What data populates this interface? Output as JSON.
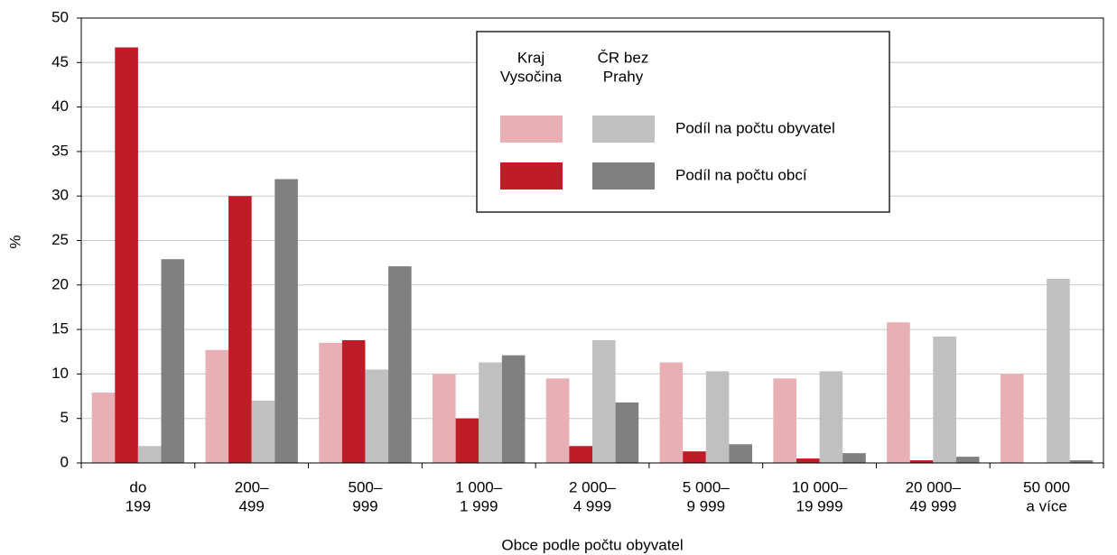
{
  "chart_data": {
    "type": "bar",
    "categories": [
      [
        "do",
        "199"
      ],
      [
        "200–",
        "499"
      ],
      [
        "500–",
        "999"
      ],
      [
        "1 000–",
        "1 999"
      ],
      [
        "2 000–",
        "4 999"
      ],
      [
        "5 000–",
        "9 999"
      ],
      [
        "10 000–",
        "19 999"
      ],
      [
        "20 000–",
        "49 999"
      ],
      [
        "50 000",
        "a více"
      ]
    ],
    "series": [
      {
        "color": "#e8b0b4",
        "values": [
          7.9,
          12.7,
          13.5,
          10.0,
          9.5,
          11.3,
          9.5,
          15.8,
          10.0
        ]
      },
      {
        "color": "#c01c28",
        "values": [
          46.7,
          30.0,
          13.8,
          5.0,
          1.9,
          1.3,
          0.5,
          0.3,
          0
        ]
      },
      {
        "color": "#c0c0c0",
        "values": [
          1.9,
          7.0,
          10.5,
          11.3,
          13.8,
          10.3,
          10.3,
          14.2,
          20.7
        ]
      },
      {
        "color": "#808080",
        "values": [
          22.9,
          31.9,
          22.1,
          12.1,
          6.8,
          2.1,
          1.1,
          0.7,
          0.3
        ]
      }
    ],
    "legend": {
      "columns": [
        [
          "Kraj",
          "Vysočina"
        ],
        [
          "ČR bez",
          "Prahy"
        ]
      ],
      "rows": [
        "Podíl na počtu obyvatel",
        "Podíl na počtu obcí"
      ]
    },
    "ylabel": "%",
    "xlabel": "Obce podle počtu obyvatel",
    "ylim": [
      0,
      50
    ],
    "yticks": [
      0,
      5,
      10,
      15,
      20,
      25,
      30,
      35,
      40,
      45,
      50
    ],
    "grid": true
  }
}
